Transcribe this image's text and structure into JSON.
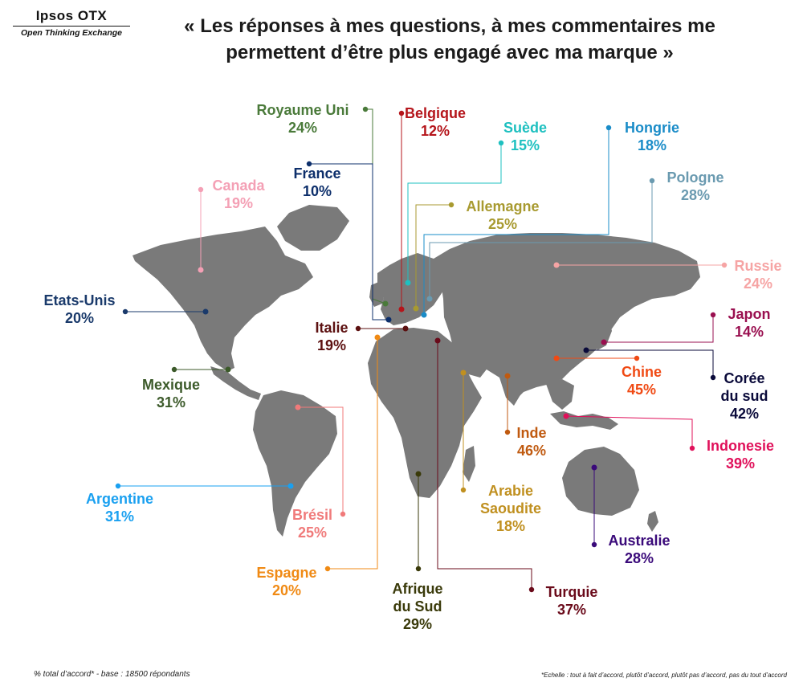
{
  "logo": {
    "title": "Ipsos OTX",
    "subtitle": "Open Thinking Exchange"
  },
  "headline": {
    "line1": "« Les réponses à mes questions, à mes commentaires me",
    "line2": "permettent d’être plus engagé avec ma marque »"
  },
  "countries": {
    "royaume_uni": {
      "name": "Royaume Uni",
      "pct": "24%",
      "color": "#4a7a3a"
    },
    "belgique": {
      "name": "Belgique",
      "pct": "12%",
      "color": "#b5151b"
    },
    "suede": {
      "name": "Suède",
      "pct": "15%",
      "color": "#1ec0c0"
    },
    "hongrie": {
      "name": "Hongrie",
      "pct": "18%",
      "color": "#1a8cc8"
    },
    "france": {
      "name": "France",
      "pct": "10%",
      "color": "#0d2f6b"
    },
    "canada": {
      "name": "Canada",
      "pct": "19%",
      "color": "#f4a0b5"
    },
    "pologne": {
      "name": "Pologne",
      "pct": "28%",
      "color": "#6a9ab0"
    },
    "allemagne": {
      "name": "Allemagne",
      "pct": "25%",
      "color": "#a89a30"
    },
    "russie": {
      "name": "Russie",
      "pct": "24%",
      "color": "#f6a4a4"
    },
    "etats_unis": {
      "name": "Etats-Unis",
      "pct": "20%",
      "color": "#1a3a6b"
    },
    "italie": {
      "name": "Italie",
      "pct": "19%",
      "color": "#5c1010"
    },
    "japon": {
      "name": "Japon",
      "pct": "14%",
      "color": "#9a1050"
    },
    "chine": {
      "name": "Chine",
      "pct": "45%",
      "color": "#f04a14"
    },
    "coree": {
      "name1": "Corée",
      "name2": "du sud",
      "pct": "42%",
      "color": "#0a0a3a"
    },
    "mexique": {
      "name": "Mexique",
      "pct": "31%",
      "color": "#3c5a2a"
    },
    "inde": {
      "name": "Inde",
      "pct": "46%",
      "color": "#c05a10"
    },
    "indonesie": {
      "name": "Indonesie",
      "pct": "39%",
      "color": "#e0105a"
    },
    "argentine": {
      "name": "Argentine",
      "pct": "31%",
      "color": "#1aa0f0"
    },
    "arabie": {
      "name1": "Arabie",
      "name2": "Saoudite",
      "pct": "18%",
      "color": "#c09020"
    },
    "bresil": {
      "name": "Brésil",
      "pct": "25%",
      "color": "#f07a7a"
    },
    "australie": {
      "name": "Australie",
      "pct": "28%",
      "color": "#3a0a7a"
    },
    "espagne": {
      "name": "Espagne",
      "pct": "20%",
      "color": "#f08a14"
    },
    "afrique_sud": {
      "name1": "Afrique",
      "name2": "du Sud",
      "pct": "29%",
      "color": "#3a3a0a"
    },
    "turquie": {
      "name": "Turquie",
      "pct": "37%",
      "color": "#6a0a1a"
    }
  },
  "footer": {
    "left": "% total d’accord* - base : 18500 répondants",
    "right": "*Echelle : tout à fait d’accord, plutôt d’accord, plutôt pas d’accord, pas du tout d’accord"
  }
}
